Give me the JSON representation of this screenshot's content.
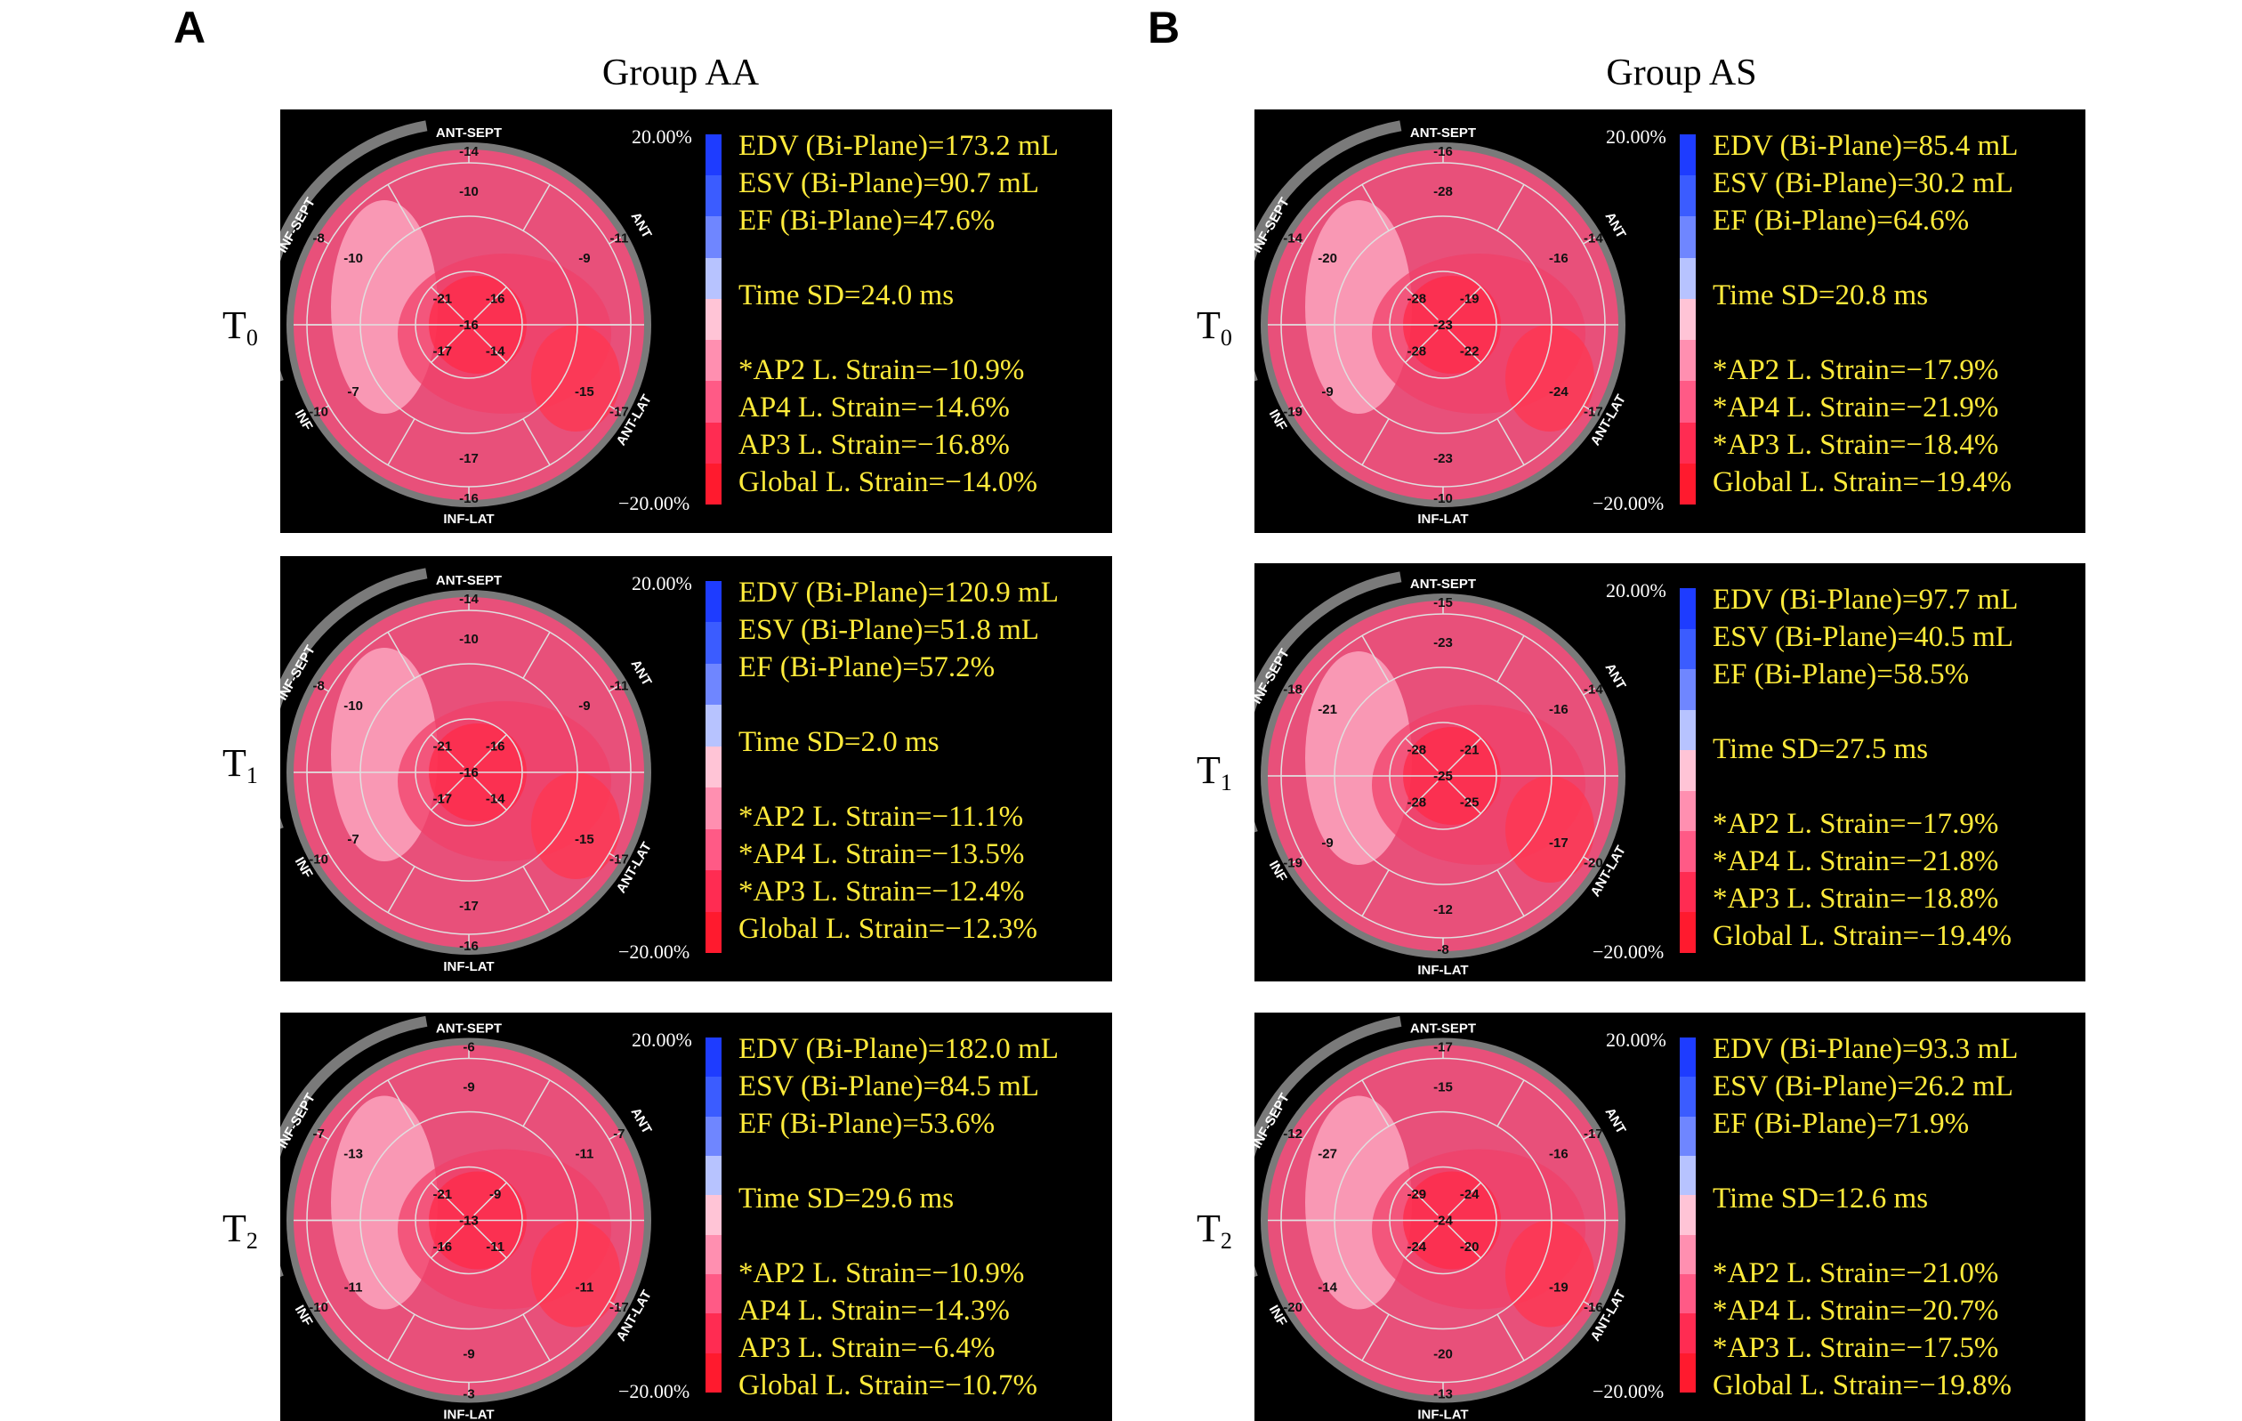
{
  "panel_letters": [
    "A",
    "B"
  ],
  "groups": [
    {
      "title": "Group AA",
      "rows": [
        {
          "time": "T",
          "sub": "0",
          "scale_top": "20.00%",
          "scale_bot": "−20.00%",
          "labels": {
            "top": "ANT-SEPT",
            "ant": "ANT",
            "antlat": "ANT-LAT",
            "bottom": "INF-LAT",
            "inf": "INF",
            "infsept": "INF-SEPT"
          },
          "values": {
            "b1": "-14",
            "b2": "-11",
            "b3": "-17",
            "b4": "-16",
            "b5": "-10",
            "b6": "-8",
            "m1": "-10",
            "m2": "-9",
            "m3": "-15",
            "m4": "-17",
            "m5": "-7",
            "m6": "-10",
            "a1": "-21",
            "a2": "-16",
            "a3": "-14",
            "a4": "-17",
            "apex": "-16"
          },
          "info": [
            "EDV (Bi-Plane)=173.2 mL",
            "ESV (Bi-Plane)=90.7 mL",
            "EF (Bi-Plane)=47.6%",
            "",
            "Time SD=24.0 ms",
            "",
            "*AP2 L. Strain=−10.9%",
            "AP4 L. Strain=−14.6%",
            "AP3 L. Strain=−16.8%",
            "Global L. Strain=−14.0%"
          ]
        },
        {
          "time": "T",
          "sub": "1",
          "scale_top": "20.00%",
          "scale_bot": "−20.00%",
          "labels": {
            "top": "ANT-SEPT",
            "ant": "ANT",
            "antlat": "ANT-LAT",
            "bottom": "INF-LAT",
            "inf": "INF",
            "infsept": "INF-SEPT"
          },
          "values": {
            "b1": "-14",
            "b2": "-11",
            "b3": "-17",
            "b4": "-16",
            "b5": "-10",
            "b6": "-8",
            "m1": "-10",
            "m2": "-9",
            "m3": "-15",
            "m4": "-17",
            "m5": "-7",
            "m6": "-10",
            "a1": "-21",
            "a2": "-16",
            "a3": "-14",
            "a4": "-17",
            "apex": "-16"
          },
          "info": [
            "EDV (Bi-Plane)=120.9 mL",
            "ESV (Bi-Plane)=51.8 mL",
            "EF (Bi-Plane)=57.2%",
            "",
            "Time SD=2.0 ms",
            "",
            "*AP2 L. Strain=−11.1%",
            "*AP4 L. Strain=−13.5%",
            "*AP3 L. Strain=−12.4%",
            "Global L. Strain=−12.3%"
          ]
        },
        {
          "time": "T",
          "sub": "2",
          "scale_top": "20.00%",
          "scale_bot": "−20.00%",
          "labels": {
            "top": "ANT-SEPT",
            "ant": "ANT",
            "antlat": "ANT-LAT",
            "bottom": "INF-LAT",
            "inf": "INF",
            "infsept": "INF-SEPT"
          },
          "values": {
            "b1": "-6",
            "b2": "-7",
            "b3": "-17",
            "b4": "-3",
            "b5": "-10",
            "b6": "-7",
            "m1": "-9",
            "m2": "-11",
            "m3": "-11",
            "m4": "-9",
            "m5": "-11",
            "m6": "-13",
            "a1": "-21",
            "a2": "-9",
            "a3": "-11",
            "a4": "-16",
            "apex": "-13"
          },
          "info": [
            "EDV (Bi-Plane)=182.0 mL",
            "ESV (Bi-Plane)=84.5 mL",
            "EF (Bi-Plane)=53.6%",
            "",
            "Time SD=29.6 ms",
            "",
            "*AP2 L. Strain=−10.9%",
            "AP4 L. Strain=−14.3%",
            "AP3 L. Strain=−6.4%",
            "Global L. Strain=−10.7%"
          ]
        }
      ]
    },
    {
      "title": "Group AS",
      "rows": [
        {
          "time": "T",
          "sub": "0",
          "scale_top": "20.00%",
          "scale_bot": "−20.00%",
          "labels": {
            "top": "ANT-SEPT",
            "ant": "ANT",
            "antlat": "ANT-LAT",
            "bottom": "INF-LAT",
            "inf": "INF",
            "infsept": "INF-SEPT"
          },
          "values": {
            "b1": "-16",
            "b2": "-14",
            "b3": "-17",
            "b4": "-10",
            "b5": "-19",
            "b6": "-14",
            "m1": "-28",
            "m2": "-16",
            "m3": "-24",
            "m4": "-23",
            "m5": "-9",
            "m6": "-20",
            "a1": "-28",
            "a2": "-19",
            "a3": "-22",
            "a4": "-28",
            "apex": "-23"
          },
          "info": [
            "EDV (Bi-Plane)=85.4 mL",
            "ESV (Bi-Plane)=30.2 mL",
            "EF (Bi-Plane)=64.6%",
            "",
            "Time SD=20.8 ms",
            "",
            "*AP2 L. Strain=−17.9%",
            "*AP4 L. Strain=−21.9%",
            "*AP3 L. Strain=−18.4%",
            "Global L. Strain=−19.4%"
          ]
        },
        {
          "time": "T",
          "sub": "1",
          "scale_top": "20.00%",
          "scale_bot": "−20.00%",
          "labels": {
            "top": "ANT-SEPT",
            "ant": "ANT",
            "antlat": "ANT-LAT",
            "bottom": "INF-LAT",
            "inf": "INF",
            "infsept": "INF-SEPT"
          },
          "values": {
            "b1": "-15",
            "b2": "-14",
            "b3": "-20",
            "b4": "-8",
            "b5": "-19",
            "b6": "-18",
            "m1": "-23",
            "m2": "-16",
            "m3": "-17",
            "m4": "-12",
            "m5": "-9",
            "m6": "-21",
            "a1": "-28",
            "a2": "-21",
            "a3": "-25",
            "a4": "-28",
            "apex": "-25"
          },
          "info": [
            "EDV (Bi-Plane)=97.7 mL",
            "ESV (Bi-Plane)=40.5 mL",
            "EF (Bi-Plane)=58.5%",
            "",
            "Time SD=27.5 ms",
            "",
            "*AP2 L. Strain=−17.9%",
            "*AP4 L. Strain=−21.8%",
            "*AP3 L. Strain=−18.8%",
            "Global L. Strain=−19.4%"
          ]
        },
        {
          "time": "T",
          "sub": "2",
          "scale_top": "20.00%",
          "scale_bot": "−20.00%",
          "labels": {
            "top": "ANT-SEPT",
            "ant": "ANT",
            "antlat": "ANT-LAT",
            "bottom": "INF-LAT",
            "inf": "INF",
            "infsept": "INF-SEPT"
          },
          "values": {
            "b1": "-17",
            "b2": "-17",
            "b3": "-16",
            "b4": "-13",
            "b5": "-20",
            "b6": "-12",
            "m1": "-15",
            "m2": "-16",
            "m3": "-19",
            "m4": "-20",
            "m5": "-14",
            "m6": "-27",
            "a1": "-29",
            "a2": "-24",
            "a3": "-20",
            "a4": "-24",
            "apex": "-24"
          },
          "info": [
            "EDV (Bi-Plane)=93.3 mL",
            "ESV (Bi-Plane)=26.2 mL",
            "EF (Bi-Plane)=71.9%",
            "",
            "Time SD=12.6 ms",
            "",
            "*AP2 L. Strain=−21.0%",
            "*AP4 L. Strain=−20.7%",
            "*AP3 L. Strain=−17.5%",
            "Global L. Strain=−19.8%"
          ]
        }
      ]
    }
  ],
  "colors": {
    "panel_bg": "#000000",
    "info_text": "#ffeb3b",
    "bullseye_fill": "#e8507a",
    "bullseye_ring": "#7a7a7a",
    "scale": [
      "#1e3cff",
      "#3b5cff",
      "#6f86ff",
      "#b7c3ff",
      "#ffc4d6",
      "#ff8fb0",
      "#ff5a86",
      "#ff2c52",
      "#ff1a2e"
    ]
  }
}
